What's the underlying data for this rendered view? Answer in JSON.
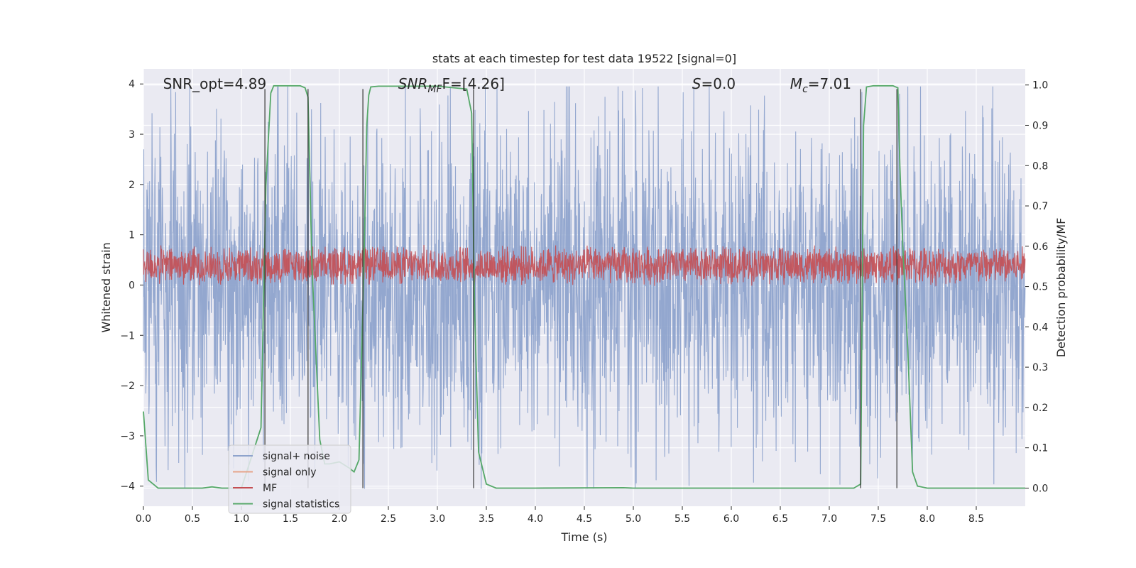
{
  "chart_data": {
    "type": "line",
    "title": "stats at each timestep for test data 19522 [signal=0]",
    "xlabel": "Time (s)",
    "ylabel": "Whitened strain",
    "y2label": "Detection probability/MF",
    "xlim": [
      0.0,
      9.0
    ],
    "ylim": [
      -4.4,
      4.3
    ],
    "y2lim": [
      -0.045,
      1.04
    ],
    "x_ticks": [
      "0.0",
      "0.5",
      "1.0",
      "1.5",
      "2.0",
      "2.5",
      "3.0",
      "3.5",
      "4.0",
      "4.5",
      "5.0",
      "5.5",
      "6.0",
      "6.5",
      "7.0",
      "7.5",
      "8.0",
      "8.5"
    ],
    "x_tick_values": [
      0.0,
      0.5,
      1.0,
      1.5,
      2.0,
      2.5,
      3.0,
      3.5,
      4.0,
      4.5,
      5.0,
      5.5,
      6.0,
      6.5,
      7.0,
      7.5,
      8.0,
      8.5
    ],
    "y_ticks": [
      "−4",
      "−3",
      "−2",
      "−1",
      "0",
      "1",
      "2",
      "3",
      "4"
    ],
    "y_tick_values": [
      -4,
      -3,
      -2,
      -1,
      0,
      1,
      2,
      3,
      4
    ],
    "y2_ticks": [
      "0.0",
      "0.1",
      "0.2",
      "0.3",
      "0.4",
      "0.5",
      "0.6",
      "0.7",
      "0.8",
      "0.9",
      "1.0"
    ],
    "y2_tick_values": [
      0.0,
      0.1,
      0.2,
      0.3,
      0.4,
      0.5,
      0.6,
      0.7,
      0.8,
      0.9,
      1.0
    ],
    "grid": true,
    "legend_position": "lower-left",
    "legend": [
      {
        "label": "signal+ noise",
        "color": "#8ea3cc"
      },
      {
        "label": "signal only",
        "color": "#e7a48a"
      },
      {
        "label": "MF",
        "color": "#c44e52"
      },
      {
        "label": "signal statistics",
        "color": "#55a868"
      }
    ],
    "annotations": [
      {
        "text": "SNR_opt=4.89",
        "x": 0.2,
        "y": 4.0
      },
      {
        "text_main": "SNR",
        "text_sub": "MF",
        "text_rest": "F=[4.26]",
        "x": 2.6,
        "y": 4.0
      },
      {
        "text_main": "S",
        "text_rest": "=0.0",
        "x": 5.6,
        "y": 4.0
      },
      {
        "text_main": "M",
        "text_sub": "c",
        "text_rest": "=7.01",
        "x": 6.6,
        "y": 4.0
      }
    ],
    "series": [
      {
        "name": "signal+ noise",
        "axis": "left",
        "color": "#8ea3cc",
        "style": "noise",
        "spread": 1.55,
        "peak_max": 3.95,
        "peak_min": -4.05,
        "dt": 0.0035
      },
      {
        "name": "MF",
        "axis": "right",
        "color": "#c44e52",
        "style": "noise-band",
        "low": 0.505,
        "high": 0.6,
        "dt": 0.0035
      },
      {
        "name": "signal statistics",
        "axis": "right",
        "color": "#55a868",
        "x": [
          0.0,
          0.05,
          0.1,
          0.15,
          0.2,
          0.6,
          0.7,
          0.8,
          1.0,
          1.2,
          1.25,
          1.3,
          1.33,
          1.45,
          1.6,
          1.65,
          1.68,
          1.72,
          1.8,
          1.85,
          1.9,
          2.0,
          2.1,
          2.15,
          2.2,
          2.25,
          2.28,
          2.3,
          2.32,
          2.4,
          2.6,
          3.0,
          3.3,
          3.35,
          3.38,
          3.42,
          3.5,
          3.6,
          4.0,
          4.9,
          5.0,
          6.0,
          7.0,
          7.25,
          7.32,
          7.35,
          7.38,
          7.45,
          7.55,
          7.65,
          7.7,
          7.72,
          7.75,
          7.8,
          7.85,
          7.9,
          8.0,
          9.0
        ],
        "y": [
          0.19,
          0.02,
          0.01,
          0.0,
          0.0,
          0.0,
          0.003,
          0.0,
          0.0,
          0.15,
          0.75,
          0.98,
          0.998,
          0.998,
          0.998,
          0.993,
          0.97,
          0.55,
          0.12,
          0.06,
          0.06,
          0.065,
          0.05,
          0.04,
          0.07,
          0.55,
          0.9,
          0.975,
          0.995,
          0.997,
          0.997,
          0.997,
          0.99,
          0.93,
          0.45,
          0.09,
          0.01,
          0.0,
          0.0,
          0.001,
          0.0,
          0.0,
          0.0,
          0.0,
          0.01,
          0.9,
          0.995,
          0.998,
          0.998,
          0.998,
          0.993,
          0.8,
          0.6,
          0.35,
          0.04,
          0.005,
          0.0,
          0.0
        ]
      }
    ],
    "vertical_lines": [
      1.24,
      1.68,
      2.24,
      3.37,
      7.32,
      7.69
    ],
    "vertical_line_range_y2": [
      0.0,
      0.99
    ],
    "vertical_line_color": "#333333"
  }
}
